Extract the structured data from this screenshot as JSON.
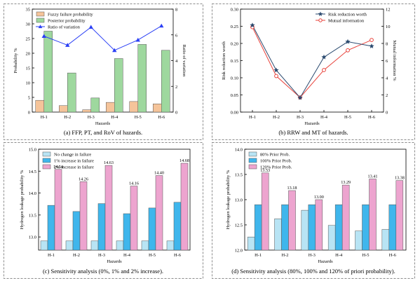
{
  "panels": [
    {
      "caption": "(a) FFP, PT, and RoV of hazards.",
      "chart_data": {
        "type": "bar",
        "categories": [
          "H-1",
          "H-2",
          "H-3",
          "H-4",
          "H-5",
          "H-6"
        ],
        "xlabel": "Hazards",
        "ylabel": "Probability %",
        "ylim": [
          0,
          35
        ],
        "yticks": [
          0,
          5,
          10,
          15,
          20,
          25,
          30,
          35
        ],
        "y2label": "Ratio of variation",
        "y2lim": [
          0,
          8
        ],
        "y2ticks": [
          0,
          2,
          4,
          6,
          8
        ],
        "legend_position": "top-left",
        "series": [
          {
            "name": "Fuzzy failure probability",
            "type": "bar",
            "axis": "left",
            "color": "#f5c49a",
            "values": [
              4.0,
              2.2,
              0.8,
              3.3,
              3.6,
              2.8
            ]
          },
          {
            "name": "Posterior probability",
            "type": "bar",
            "axis": "left",
            "color": "#9ed89e",
            "values": [
              27.5,
              13.3,
              4.8,
              18.2,
              23.0,
              21.0
            ]
          },
          {
            "name": "Ratio of variation",
            "type": "line",
            "axis": "right",
            "color": "#2a3ff5",
            "marker": "triangle",
            "values": [
              5.9,
              5.2,
              6.6,
              4.8,
              5.6,
              6.7
            ]
          }
        ]
      }
    },
    {
      "caption": "(b) RRW and MT of hazards.",
      "chart_data": {
        "type": "line",
        "categories": [
          "H-1",
          "H-2",
          "H-3",
          "H-4",
          "H-5",
          "H-6"
        ],
        "xlabel": "Hazards",
        "ylabel": "Risk reduction worth",
        "ylim": [
          0,
          0.3
        ],
        "yticks": [
          0.0,
          0.05,
          0.1,
          0.15,
          0.2,
          0.25,
          0.3
        ],
        "y2label": "Mutual information %",
        "y2lim": [
          0,
          12
        ],
        "y2ticks": [
          0,
          2,
          4,
          6,
          8,
          10,
          12
        ],
        "legend_position": "top-right",
        "series": [
          {
            "name": "Risk reduction worth",
            "axis": "left",
            "color": "#2b4a6f",
            "marker": "star",
            "values": [
              0.253,
              0.122,
              0.042,
              0.16,
              0.205,
              0.192
            ]
          },
          {
            "name": "Mutual information",
            "axis": "right",
            "color": "#e8413a",
            "marker": "circle",
            "values": [
              9.9,
              4.2,
              1.7,
              4.9,
              7.2,
              8.4
            ]
          }
        ]
      }
    },
    {
      "caption": "(c) Sensitivity analysis (0%, 1% and 2% increase).",
      "chart_data": {
        "type": "bar",
        "categories": [
          "H-1",
          "H-2",
          "H-3",
          "H-4",
          "H-5",
          "H-6"
        ],
        "xlabel": "Hazards",
        "ylabel": "Hydrogen leakage probability %",
        "ylim": [
          12.7,
          15.0
        ],
        "yticks": [
          13.0,
          13.5,
          14.0,
          14.5,
          15.0
        ],
        "legend_position": "top-left",
        "series": [
          {
            "name": "No change in failure",
            "color": "#b8e4f4",
            "values": [
              12.91,
              12.91,
              12.91,
              12.91,
              12.91,
              12.91
            ]
          },
          {
            "name": "1% increase in failure",
            "color": "#3fb6ec",
            "values": [
              13.72,
              13.58,
              13.76,
              13.53,
              13.66,
              13.79
            ]
          },
          {
            "name": "2% increase in failure",
            "color": "#eda4cf",
            "values": [
              14.54,
              14.26,
              14.63,
              14.16,
              14.4,
              14.68
            ]
          }
        ],
        "data_labels": [
          "14.54",
          "14.26",
          "14.63",
          "14.16",
          "14.40",
          "14.68"
        ]
      }
    },
    {
      "caption": "(d) Sensitivity analysis (80%, 100% and 120% of priori probability).",
      "chart_data": {
        "type": "bar",
        "categories": [
          "H-1",
          "H-2",
          "H-3",
          "H-4",
          "H-5",
          "H-6"
        ],
        "xlabel": "Hazards",
        "ylabel": "Hydrogen leakage probability %",
        "ylim": [
          12.0,
          14.0
        ],
        "yticks": [
          12.0,
          12.5,
          13.0,
          13.5,
          14.0
        ],
        "legend_position": "top-left",
        "series": [
          {
            "name": "80% Prior Prob.",
            "color": "#b8e4f4",
            "values": [
              12.26,
              12.62,
              12.79,
              12.49,
              12.38,
              12.41
            ]
          },
          {
            "name": "100% Prior Prob.",
            "color": "#3fb6ec",
            "values": [
              12.9,
              12.9,
              12.9,
              12.9,
              12.9,
              12.9
            ]
          },
          {
            "name": "120% Prior Prob.",
            "color": "#eda4cf",
            "values": [
              13.53,
              13.18,
              13.0,
              13.29,
              13.41,
              13.38
            ]
          }
        ],
        "data_labels": [
          "13.53",
          "13.18",
          "13.00",
          "13.29",
          "13.41",
          "13.38"
        ]
      }
    }
  ]
}
